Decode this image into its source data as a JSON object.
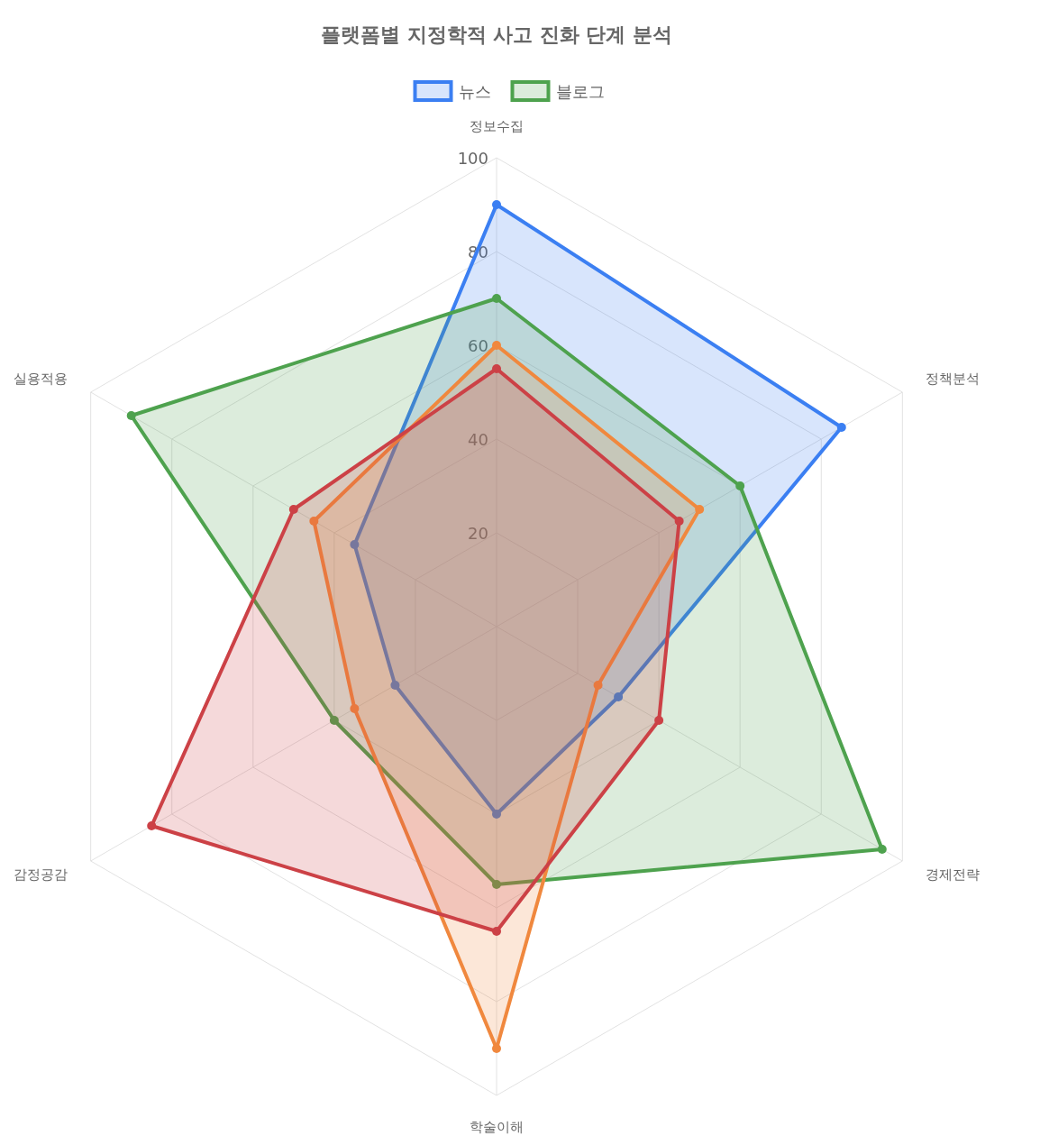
{
  "chart_data": {
    "type": "radar",
    "title": "플랫폼별 지정학적 사고 진화 단계 분석",
    "categories": [
      "정보수집",
      "정책분석",
      "경제전략",
      "학술이해",
      "감정공감",
      "실용적용"
    ],
    "ylim": [
      0,
      100
    ],
    "yticks": [
      20,
      40,
      60,
      80,
      100
    ],
    "grid": true,
    "legend": "top",
    "marker": "circle",
    "series": [
      {
        "name": "뉴스",
        "color": "#3b7ff2",
        "values": [
          90,
          85,
          30,
          40,
          25,
          35
        ]
      },
      {
        "name": "블로그",
        "color": "#4ea24e",
        "values": [
          70,
          60,
          95,
          55,
          40,
          90
        ]
      },
      {
        "color": "#f0883e",
        "values": [
          60,
          50,
          25,
          90,
          35,
          45
        ]
      },
      {
        "color": "#cc4146",
        "values": [
          55,
          45,
          40,
          65,
          85,
          50
        ]
      }
    ]
  }
}
